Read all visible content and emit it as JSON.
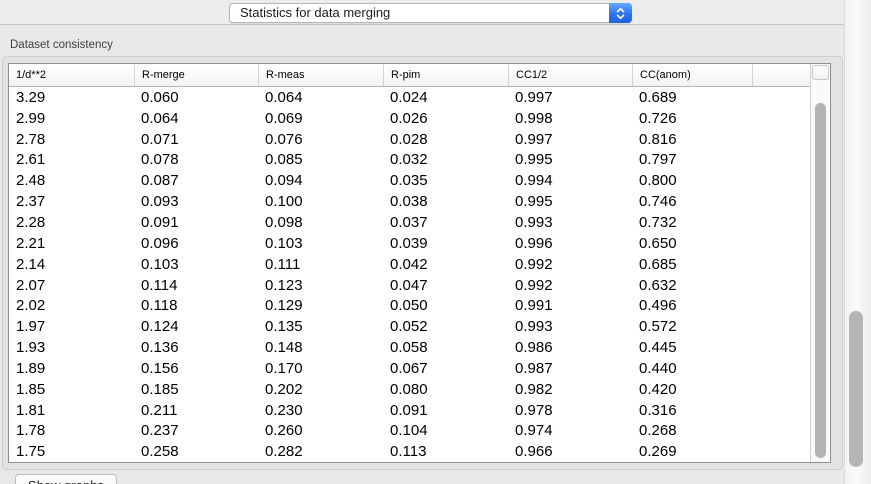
{
  "toolbar": {
    "statistics_select": {
      "value": "Statistics for data merging"
    }
  },
  "panel": {
    "group_label": "Dataset consistency",
    "table": {
      "columns": [
        "1/d**2",
        "R-merge",
        "R-meas",
        "R-pim",
        "CC1/2",
        "CC(anom)"
      ],
      "rows": [
        [
          "3.29",
          "0.060",
          "0.064",
          "0.024",
          "0.997",
          "0.689"
        ],
        [
          "2.99",
          "0.064",
          "0.069",
          "0.026",
          "0.998",
          "0.726"
        ],
        [
          "2.78",
          "0.071",
          "0.076",
          "0.028",
          "0.997",
          "0.816"
        ],
        [
          "2.61",
          "0.078",
          "0.085",
          "0.032",
          "0.995",
          "0.797"
        ],
        [
          "2.48",
          "0.087",
          "0.094",
          "0.035",
          "0.994",
          "0.800"
        ],
        [
          "2.37",
          "0.093",
          "0.100",
          "0.038",
          "0.995",
          "0.746"
        ],
        [
          "2.28",
          "0.091",
          "0.098",
          "0.037",
          "0.993",
          "0.732"
        ],
        [
          "2.21",
          "0.096",
          "0.103",
          "0.039",
          "0.996",
          "0.650"
        ],
        [
          "2.14",
          "0.103",
          "0.111",
          "0.042",
          "0.992",
          "0.685"
        ],
        [
          "2.07",
          "0.114",
          "0.123",
          "0.047",
          "0.992",
          "0.632"
        ],
        [
          "2.02",
          "0.118",
          "0.129",
          "0.050",
          "0.991",
          "0.496"
        ],
        [
          "1.97",
          "0.124",
          "0.135",
          "0.052",
          "0.993",
          "0.572"
        ],
        [
          "1.93",
          "0.136",
          "0.148",
          "0.058",
          "0.986",
          "0.445"
        ],
        [
          "1.89",
          "0.156",
          "0.170",
          "0.067",
          "0.987",
          "0.440"
        ],
        [
          "1.85",
          "0.185",
          "0.202",
          "0.080",
          "0.982",
          "0.420"
        ],
        [
          "1.81",
          "0.211",
          "0.230",
          "0.091",
          "0.978",
          "0.316"
        ],
        [
          "1.78",
          "0.237",
          "0.260",
          "0.104",
          "0.974",
          "0.268"
        ],
        [
          "1.75",
          "0.258",
          "0.282",
          "0.113",
          "0.966",
          "0.269"
        ]
      ]
    }
  },
  "footer": {
    "show_graphs_label": "Show graphs"
  },
  "colors": {
    "accent_blue": "#2d74ee",
    "window_bg": "#e8e8e8",
    "scroll_thumb": "#b3b3b3"
  }
}
